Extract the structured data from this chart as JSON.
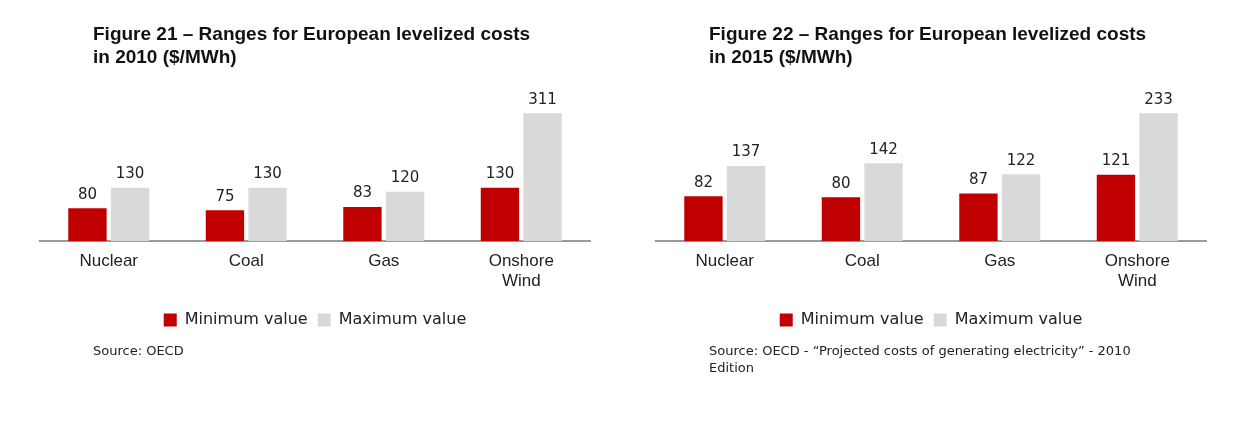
{
  "chart_data": [
    {
      "type": "bar",
      "title": "Figure 21 – Ranges for European levelized costs in 2010 ($/MWh)",
      "categories": [
        "Nuclear",
        "Coal",
        "Gas",
        "Onshore Wind"
      ],
      "series": [
        {
          "name": "Minimum value",
          "color": "#c00000",
          "values": [
            80,
            75,
            83,
            130
          ]
        },
        {
          "name": "Maximum value",
          "color": "#d9d9d9",
          "values": [
            130,
            130,
            120,
            311
          ]
        }
      ],
      "data_labels": true,
      "legend": "bottom",
      "tick_labels": "x",
      "annotations": [
        "Source: OECD"
      ]
    },
    {
      "type": "bar",
      "title": "Figure 22 – Ranges for European levelized costs in 2015 ($/MWh)",
      "categories": [
        "Nuclear",
        "Coal",
        "Gas",
        "Onshore Wind"
      ],
      "series": [
        {
          "name": "Minimum value",
          "color": "#c00000",
          "values": [
            82,
            80,
            87,
            121
          ]
        },
        {
          "name": "Maximum value",
          "color": "#d9d9d9",
          "values": [
            137,
            142,
            122,
            233
          ]
        }
      ],
      "data_labels": true,
      "legend": "bottom",
      "tick_labels": "x",
      "annotations": [
        "Source: OECD - “Projected costs of generating electricity” - 2010 Edition"
      ]
    }
  ]
}
